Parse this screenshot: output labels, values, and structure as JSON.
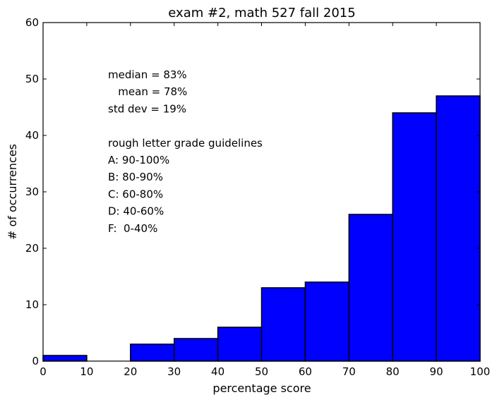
{
  "chart_data": {
    "type": "bar",
    "title": "exam #2, math 527 fall 2015",
    "xlabel": "percentage score",
    "ylabel": "# of occurrences",
    "xlim": [
      0,
      100
    ],
    "ylim": [
      0,
      60
    ],
    "xticks": [
      0,
      10,
      20,
      30,
      40,
      50,
      60,
      70,
      80,
      90,
      100
    ],
    "yticks": [
      0,
      10,
      20,
      30,
      40,
      50,
      60
    ],
    "bins": [
      [
        0,
        10
      ],
      [
        10,
        20
      ],
      [
        20,
        30
      ],
      [
        30,
        40
      ],
      [
        40,
        50
      ],
      [
        50,
        60
      ],
      [
        60,
        70
      ],
      [
        70,
        80
      ],
      [
        80,
        90
      ],
      [
        90,
        100
      ]
    ],
    "values": [
      1,
      0,
      3,
      4,
      6,
      13,
      14,
      26,
      44,
      47
    ],
    "bar_color": "#0000ff",
    "annotation_lines": [
      "median = 83%",
      "   mean = 78%",
      "std dev = 19%",
      "",
      "rough letter grade guidelines",
      "A: 90-100%",
      "B: 80-90%",
      "C: 60-80%",
      "D: 40-60%",
      "F:  0-40%"
    ]
  }
}
